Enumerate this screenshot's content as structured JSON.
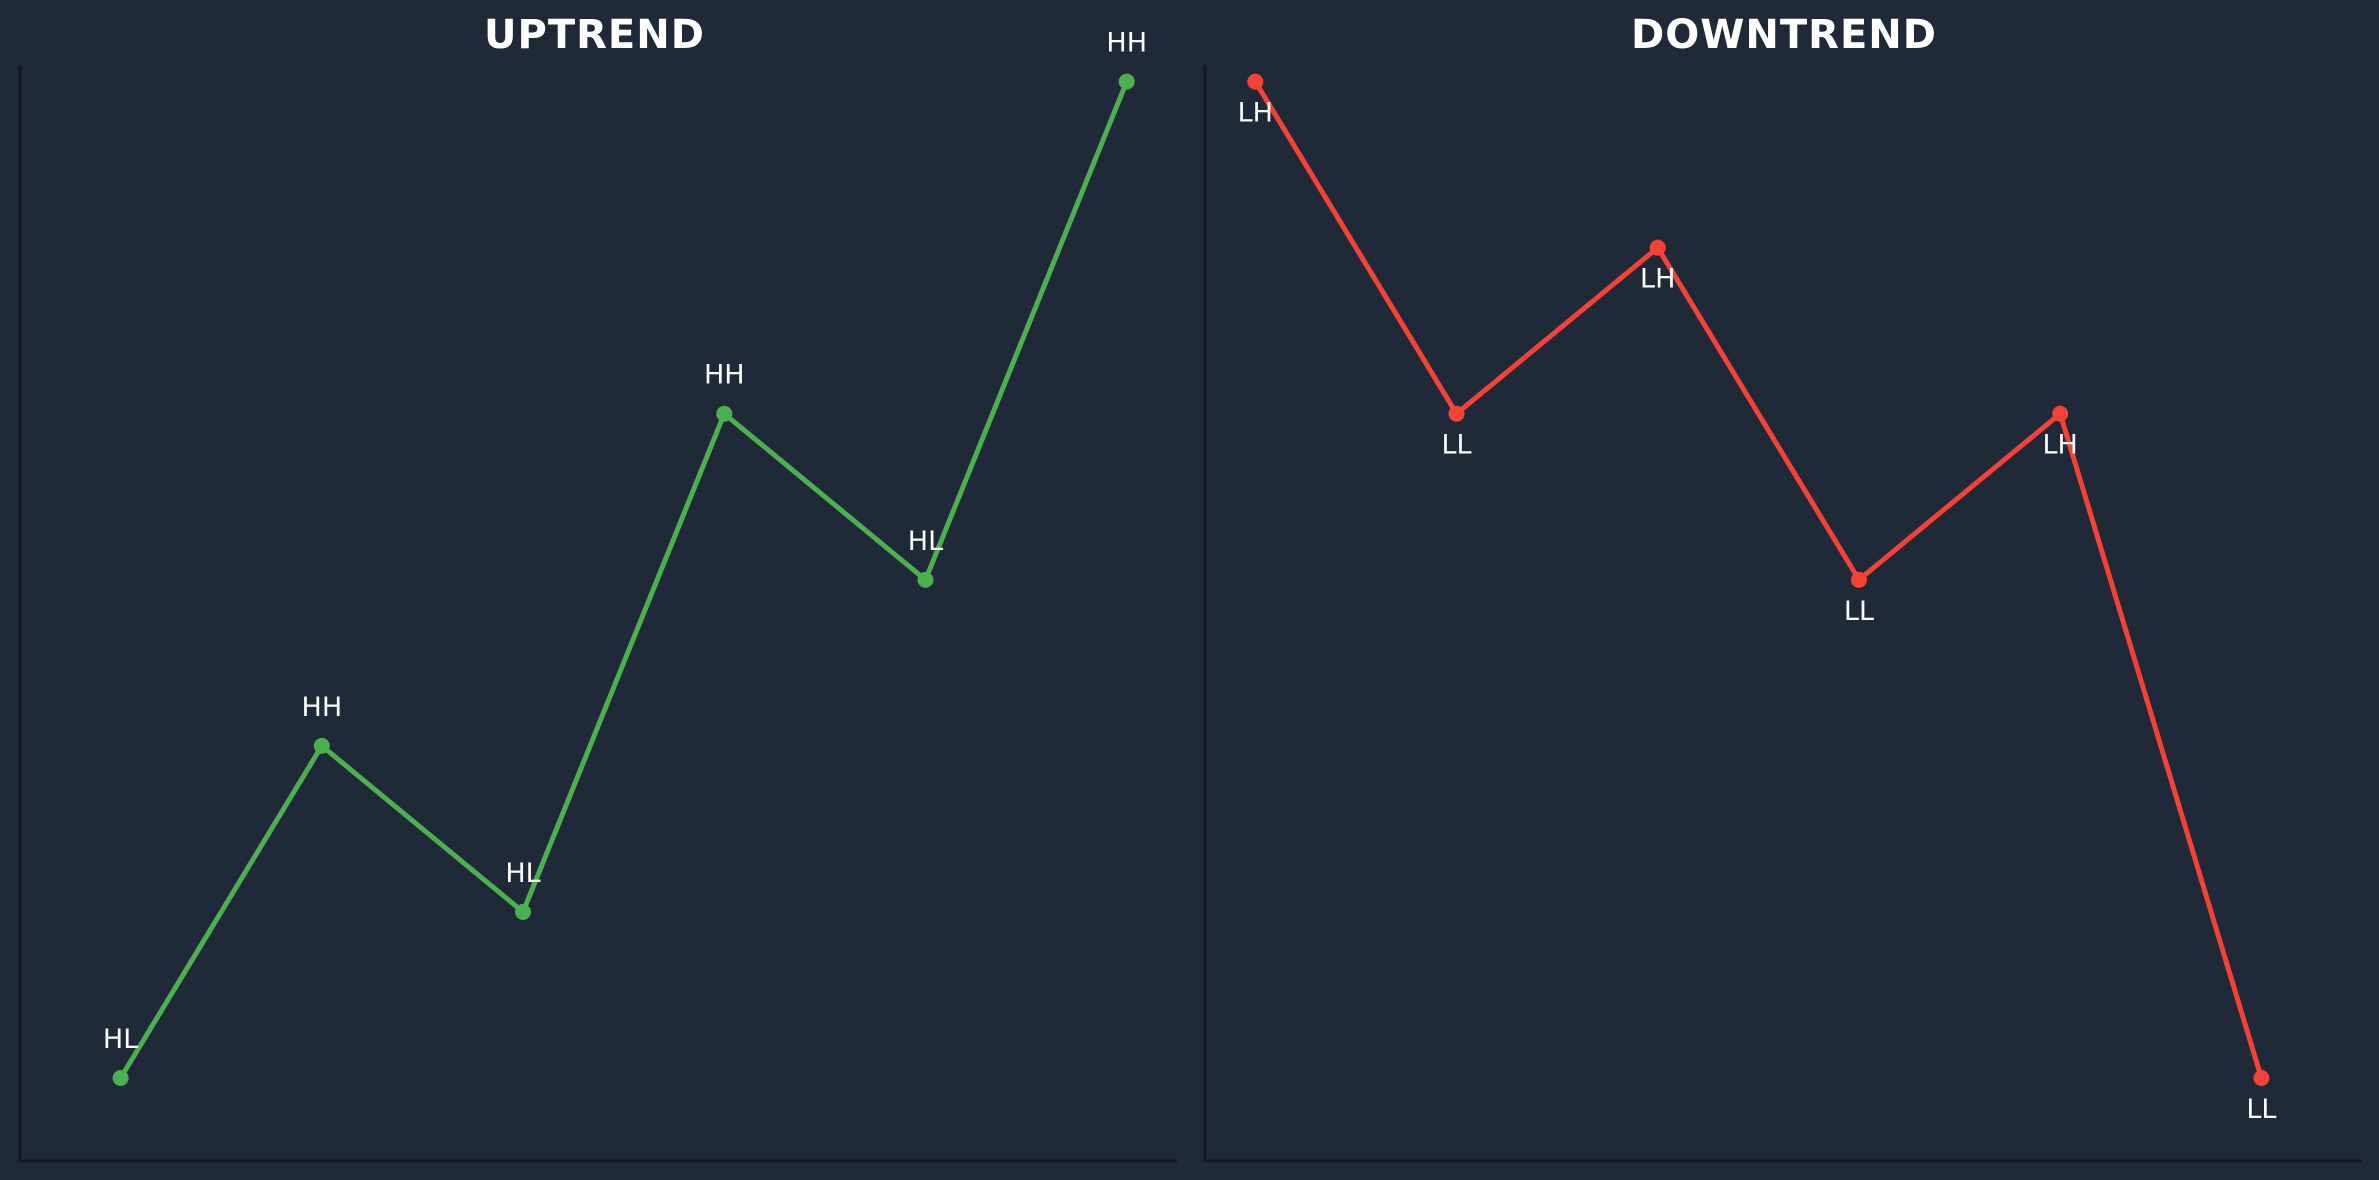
{
  "colors": {
    "background": "#1f2937",
    "uptrend": "#4caf50",
    "downtrend": "#f44336",
    "text": "#ffffff"
  },
  "chart_data": [
    {
      "type": "line",
      "title": "UPTREND",
      "xlabel": "",
      "ylabel": "",
      "grid": false,
      "x": [
        1,
        2,
        3,
        4,
        5,
        6
      ],
      "xlim": [
        0.5,
        6.25
      ],
      "ylim": [
        0.5,
        7.1
      ],
      "series": [
        {
          "color": "#4caf50",
          "values": [
            1,
            3,
            2,
            5,
            4,
            7
          ],
          "labels": [
            "HL",
            "HH",
            "HL",
            "HH",
            "HL",
            "HH"
          ]
        }
      ]
    },
    {
      "type": "line",
      "title": "DOWNTREND",
      "xlabel": "",
      "ylabel": "",
      "grid": false,
      "x": [
        1,
        2,
        3,
        4,
        5,
        6
      ],
      "xlim": [
        0.75,
        6.5
      ],
      "ylim": [
        0.5,
        7.1
      ],
      "series": [
        {
          "color": "#f44336",
          "values": [
            7,
            5,
            6,
            4,
            5,
            1
          ],
          "labels": [
            "LH",
            "LL",
            "LH",
            "LL",
            "LH",
            "LL"
          ]
        }
      ]
    }
  ]
}
